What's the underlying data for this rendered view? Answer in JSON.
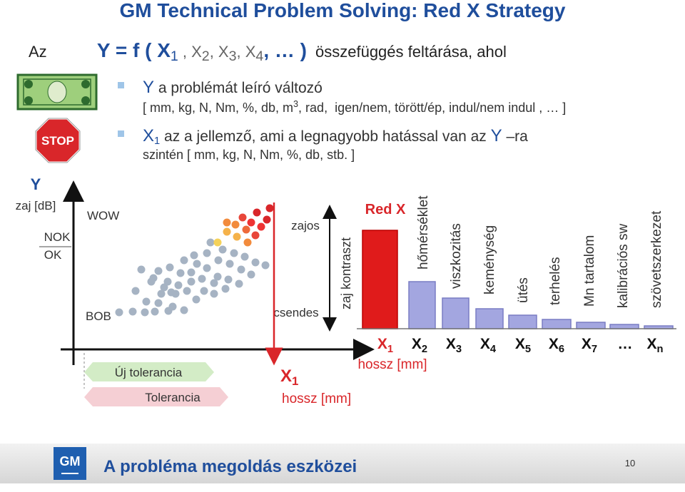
{
  "title": "GM Technical Problem Solving: Red X Strategy",
  "formula": {
    "lead": "Az",
    "parts": [
      "Y = f ( X",
      "1",
      " , X",
      "2",
      ", X",
      "3",
      ", X",
      "4",
      ", … )"
    ],
    "tail": "összefüggés feltárása, ahol"
  },
  "bullets": [
    {
      "line1": [
        "Y",
        " a problémát leíró változó"
      ],
      "line2": [
        "[ mm, kg, N, Nm, %, db, m",
        "3",
        ", rad,  igen/nem, törött/ép, indul/nem indul , … ]"
      ]
    },
    {
      "line1": [
        "X",
        "1",
        " az a jellemző, ami a legnagyobb hatással van az ",
        "Y",
        " –ra"
      ],
      "line2": [
        "szintén [ mm, kg, N, Nm, %, db, stb. ]"
      ]
    }
  ],
  "left_diagram": {
    "y_label": "Y",
    "y_unit": "zaj [dB]",
    "nok": "NOK",
    "ok": "OK",
    "wow": "WOW",
    "bob": "BOB",
    "noisy": "zajos",
    "quiet": "csendes",
    "contrast": "zaj kontraszt",
    "new_tolerance": "Új tolerancia",
    "tolerance": "Tolerancia",
    "x_label": [
      "X",
      "1"
    ],
    "x_unit": "hossz [mm]"
  },
  "pareto": {
    "red_x": "Red X",
    "factors": [
      "hőmérséklet",
      "viszkozitás",
      "keménység",
      "ütés",
      "terhelés",
      "Mn tartalom",
      "kalibrációs sw",
      "szövetszerkezet"
    ],
    "x_labels": [
      [
        "X",
        "1"
      ],
      [
        "X",
        "2"
      ],
      [
        "X",
        "3"
      ],
      [
        "X",
        "4"
      ],
      [
        "X",
        "5"
      ],
      [
        "X",
        "6"
      ],
      [
        "X",
        "7"
      ],
      [
        "…",
        ""
      ],
      [
        "X",
        "n"
      ]
    ],
    "x_unit": "hossz [mm]"
  },
  "footer": {
    "logo": "GM",
    "text": "A probléma megoldás eszközei",
    "page": "10"
  }
}
